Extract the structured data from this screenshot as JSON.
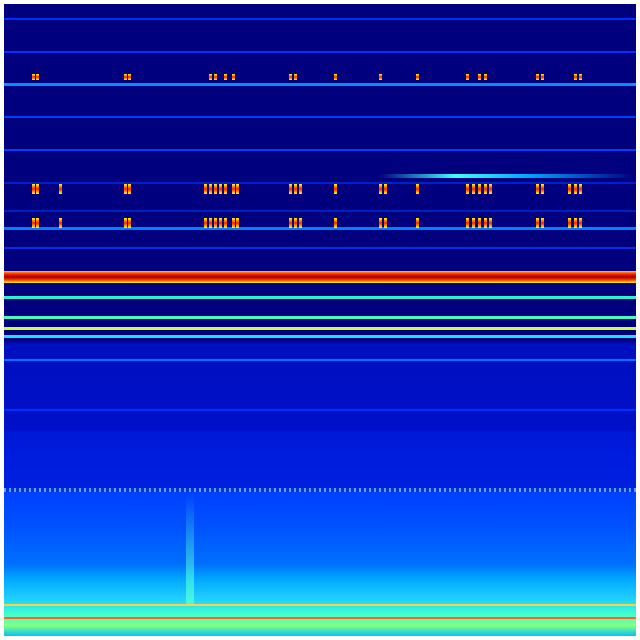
{
  "colormap": [
    "#00007f",
    "#0000ff",
    "#0080ff",
    "#00ffff",
    "#80ff80",
    "#ffff00",
    "#ff8000",
    "#ff0000",
    "#7f0000"
  ],
  "background_color": "#00007f"
}
